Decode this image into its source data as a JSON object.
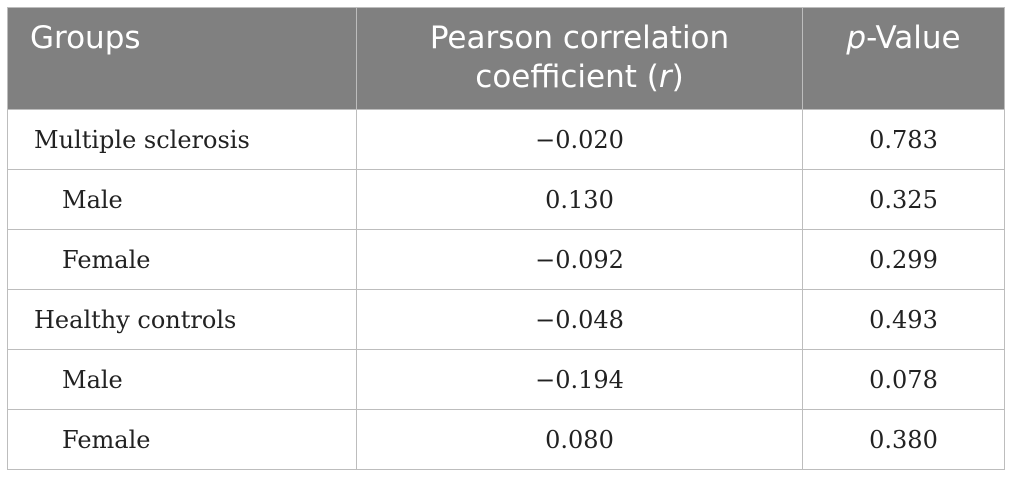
{
  "table": {
    "headers": {
      "groups": "Groups",
      "r_line1": "Pearson correlation",
      "r_line2_prefix": "coefficient (",
      "r_symbol": "r",
      "r_line2_suffix": ")",
      "p_symbol": "p",
      "p_suffix": "-Value"
    },
    "rows": [
      {
        "group": "Multiple sclerosis",
        "r": "−0.020",
        "p": "0.783"
      },
      {
        "group": "Male",
        "r": "0.130",
        "p": "0.325"
      },
      {
        "group": "Female",
        "r": "−0.092",
        "p": "0.299"
      },
      {
        "group": "Healthy controls",
        "r": "−0.048",
        "p": "0.493"
      },
      {
        "group": "Male",
        "r": "−0.194",
        "p": "0.078"
      },
      {
        "group": "Female",
        "r": "0.080",
        "p": "0.380"
      }
    ]
  }
}
